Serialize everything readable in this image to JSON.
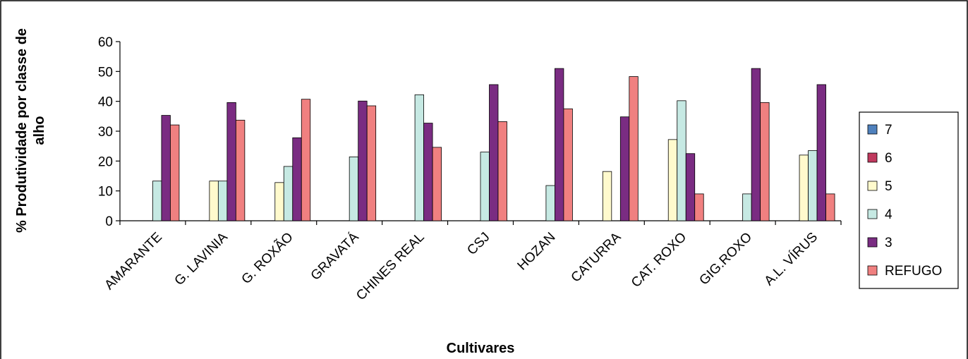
{
  "chart_data": {
    "type": "bar",
    "title": "",
    "xlabel": "Cultivares",
    "ylabel_lines": [
      "% Produtividade por classe de",
      "alho"
    ],
    "ylim": [
      0,
      60
    ],
    "yticks": [
      0,
      10,
      20,
      30,
      40,
      50,
      60
    ],
    "grid": false,
    "legend_position": "right",
    "categories": [
      "AMARANTE",
      "G. LAVINIA",
      "G. ROXÃO",
      "GRAVATÁ",
      "CHINES REAL",
      "CSJ",
      "HOZAN",
      "CATURRA",
      "CAT. ROXO",
      "GIG.ROXO",
      "A.L. VÍRUS"
    ],
    "series": [
      {
        "name": "7",
        "color": "#4F81BD",
        "values": [
          0,
          0,
          0,
          0,
          0,
          0,
          0,
          0,
          0,
          0,
          0
        ]
      },
      {
        "name": "6",
        "color": "#C0395E",
        "values": [
          0,
          0,
          0,
          0,
          0,
          0,
          0,
          0,
          0,
          0,
          0
        ]
      },
      {
        "name": "5",
        "color": "#FFFACD",
        "values": [
          0,
          13.3,
          12.8,
          0,
          0,
          0,
          0,
          16.5,
          27.2,
          0,
          22
        ]
      },
      {
        "name": "4",
        "color": "#C6E9E3",
        "values": [
          13.3,
          13.3,
          18.2,
          21.4,
          42.2,
          23,
          11.8,
          0,
          40.2,
          9,
          23.5
        ]
      },
      {
        "name": "3",
        "color": "#7A2C82",
        "values": [
          35.3,
          39.6,
          27.8,
          40.1,
          32.7,
          45.6,
          51,
          34.8,
          22.5,
          51,
          45.6
        ]
      },
      {
        "name": "REFUGO",
        "color": "#F08080",
        "values": [
          32.1,
          33.7,
          40.7,
          38.5,
          24.6,
          33.2,
          37.5,
          48.3,
          9,
          39.6,
          9
        ]
      }
    ]
  }
}
